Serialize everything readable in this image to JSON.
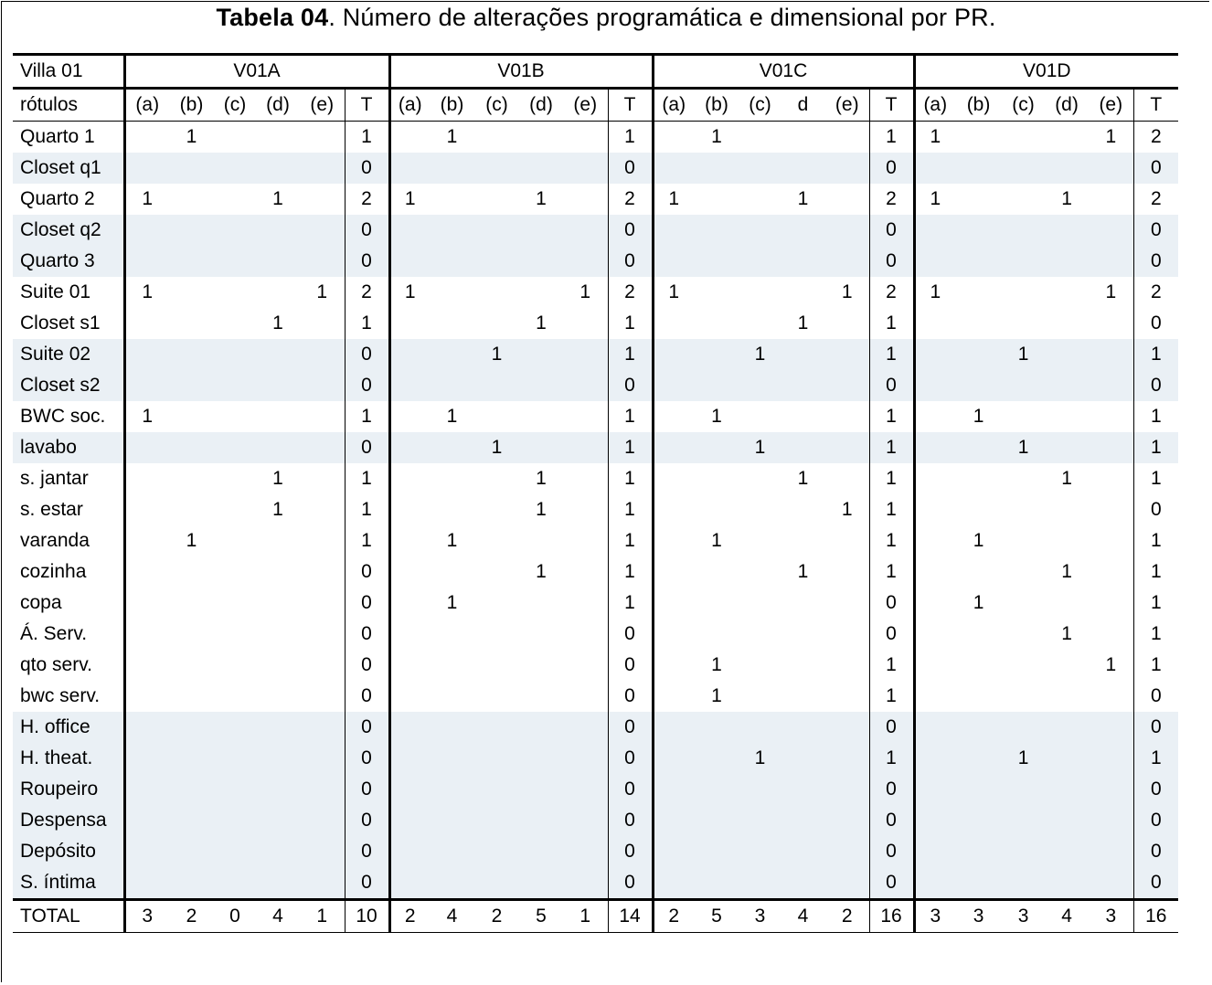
{
  "caption": {
    "bold": "Tabela 04",
    "rest": ". Número de alterações programática e dimensional por PR."
  },
  "header": {
    "corner": "Villa 01",
    "groups": [
      "V01A",
      "V01B",
      "V01C",
      "V01D"
    ],
    "row_label": "rótulos",
    "sub": [
      [
        "(a)",
        "(b)",
        "(c)",
        "(d)",
        "(e)",
        "T"
      ],
      [
        "(a)",
        "(b)",
        "(c)",
        "(d)",
        "(e)",
        "T"
      ],
      [
        "(a)",
        "(b)",
        "(c)",
        "d",
        "(e)",
        "T"
      ],
      [
        "(a)",
        "(b)",
        "(c)",
        "(d)",
        "(e)",
        "T"
      ]
    ]
  },
  "rows": [
    {
      "label": "Quarto 1",
      "band": false,
      "cells": [
        [
          "",
          "1",
          "",
          "",
          "",
          "1"
        ],
        [
          "",
          "1",
          "",
          "",
          "",
          "1"
        ],
        [
          "",
          "1",
          "",
          "",
          "",
          "1"
        ],
        [
          "1",
          "",
          "",
          "",
          "1",
          "2"
        ]
      ]
    },
    {
      "label": "Closet q1",
      "band": true,
      "cells": [
        [
          "",
          "",
          "",
          "",
          "",
          "0"
        ],
        [
          "",
          "",
          "",
          "",
          "",
          "0"
        ],
        [
          "",
          "",
          "",
          "",
          "",
          "0"
        ],
        [
          "",
          "",
          "",
          "",
          "",
          "0"
        ]
      ]
    },
    {
      "label": "Quarto 2",
      "band": false,
      "cells": [
        [
          "1",
          "",
          "",
          "1",
          "",
          "2"
        ],
        [
          "1",
          "",
          "",
          "1",
          "",
          "2"
        ],
        [
          "1",
          "",
          "",
          "1",
          "",
          "2"
        ],
        [
          "1",
          "",
          "",
          "1",
          "",
          "2"
        ]
      ]
    },
    {
      "label": "Closet q2",
      "band": true,
      "cells": [
        [
          "",
          "",
          "",
          "",
          "",
          "0"
        ],
        [
          "",
          "",
          "",
          "",
          "",
          "0"
        ],
        [
          "",
          "",
          "",
          "",
          "",
          "0"
        ],
        [
          "",
          "",
          "",
          "",
          "",
          "0"
        ]
      ]
    },
    {
      "label": "Quarto 3",
      "band": true,
      "cells": [
        [
          "",
          "",
          "",
          "",
          "",
          "0"
        ],
        [
          "",
          "",
          "",
          "",
          "",
          "0"
        ],
        [
          "",
          "",
          "",
          "",
          "",
          "0"
        ],
        [
          "",
          "",
          "",
          "",
          "",
          "0"
        ]
      ]
    },
    {
      "label": "Suite 01",
      "band": false,
      "cells": [
        [
          "1",
          "",
          "",
          "",
          "1",
          "2"
        ],
        [
          "1",
          "",
          "",
          "",
          "1",
          "2"
        ],
        [
          "1",
          "",
          "",
          "",
          "1",
          "2"
        ],
        [
          "1",
          "",
          "",
          "",
          "1",
          "2"
        ]
      ]
    },
    {
      "label": "Closet s1",
      "band": false,
      "cells": [
        [
          "",
          "",
          "",
          "1",
          "",
          "1"
        ],
        [
          "",
          "",
          "",
          "1",
          "",
          "1"
        ],
        [
          "",
          "",
          "",
          "1",
          "",
          "1"
        ],
        [
          "",
          "",
          "",
          "",
          "",
          "0"
        ]
      ]
    },
    {
      "label": "Suite 02",
      "band": true,
      "cells": [
        [
          "",
          "",
          "",
          "",
          "",
          "0"
        ],
        [
          "",
          "",
          "1",
          "",
          "",
          "1"
        ],
        [
          "",
          "",
          "1",
          "",
          "",
          "1"
        ],
        [
          "",
          "",
          "1",
          "",
          "",
          "1"
        ]
      ]
    },
    {
      "label": "Closet s2",
      "band": true,
      "cells": [
        [
          "",
          "",
          "",
          "",
          "",
          "0"
        ],
        [
          "",
          "",
          "",
          "",
          "",
          "0"
        ],
        [
          "",
          "",
          "",
          "",
          "",
          "0"
        ],
        [
          "",
          "",
          "",
          "",
          "",
          "0"
        ]
      ]
    },
    {
      "label": "BWC soc.",
      "band": false,
      "cells": [
        [
          "1",
          "",
          "",
          "",
          "",
          "1"
        ],
        [
          "",
          "1",
          "",
          "",
          "",
          "1"
        ],
        [
          "",
          "1",
          "",
          "",
          "",
          "1"
        ],
        [
          "",
          "1",
          "",
          "",
          "",
          "1"
        ]
      ]
    },
    {
      "label": "lavabo",
      "band": true,
      "cells": [
        [
          "",
          "",
          "",
          "",
          "",
          "0"
        ],
        [
          "",
          "",
          "1",
          "",
          "",
          "1"
        ],
        [
          "",
          "",
          "1",
          "",
          "",
          "1"
        ],
        [
          "",
          "",
          "1",
          "",
          "",
          "1"
        ]
      ]
    },
    {
      "label": "s. jantar",
      "band": false,
      "cells": [
        [
          "",
          "",
          "",
          "1",
          "",
          "1"
        ],
        [
          "",
          "",
          "",
          "1",
          "",
          "1"
        ],
        [
          "",
          "",
          "",
          "1",
          "",
          "1"
        ],
        [
          "",
          "",
          "",
          "1",
          "",
          "1"
        ]
      ]
    },
    {
      "label": "s. estar",
      "band": false,
      "cells": [
        [
          "",
          "",
          "",
          "1",
          "",
          "1"
        ],
        [
          "",
          "",
          "",
          "1",
          "",
          "1"
        ],
        [
          "",
          "",
          "",
          "",
          "1",
          "1"
        ],
        [
          "",
          "",
          "",
          "",
          "",
          "0"
        ]
      ]
    },
    {
      "label": "varanda",
      "band": false,
      "cells": [
        [
          "",
          "1",
          "",
          "",
          "",
          "1"
        ],
        [
          "",
          "1",
          "",
          "",
          "",
          "1"
        ],
        [
          "",
          "1",
          "",
          "",
          "",
          "1"
        ],
        [
          "",
          "1",
          "",
          "",
          "",
          "1"
        ]
      ]
    },
    {
      "label": "cozinha",
      "band": false,
      "cells": [
        [
          "",
          "",
          "",
          "",
          "",
          "0"
        ],
        [
          "",
          "",
          "",
          "1",
          "",
          "1"
        ],
        [
          "",
          "",
          "",
          "1",
          "",
          "1"
        ],
        [
          "",
          "",
          "",
          "1",
          "",
          "1"
        ]
      ]
    },
    {
      "label": "copa",
      "band": false,
      "cells": [
        [
          "",
          "",
          "",
          "",
          "",
          "0"
        ],
        [
          "",
          "1",
          "",
          "",
          "",
          "1"
        ],
        [
          "",
          "",
          "",
          "",
          "",
          "0"
        ],
        [
          "",
          "1",
          "",
          "",
          "",
          "1"
        ]
      ]
    },
    {
      "label": "Á. Serv.",
      "band": false,
      "cells": [
        [
          "",
          "",
          "",
          "",
          "",
          "0"
        ],
        [
          "",
          "",
          "",
          "",
          "",
          "0"
        ],
        [
          "",
          "",
          "",
          "",
          "",
          "0"
        ],
        [
          "",
          "",
          "",
          "1",
          "",
          "1"
        ]
      ]
    },
    {
      "label": "qto serv.",
      "band": false,
      "cells": [
        [
          "",
          "",
          "",
          "",
          "",
          "0"
        ],
        [
          "",
          "",
          "",
          "",
          "",
          "0"
        ],
        [
          "",
          "1",
          "",
          "",
          "",
          "1"
        ],
        [
          "",
          "",
          "",
          "",
          "1",
          "1"
        ]
      ]
    },
    {
      "label": "bwc serv.",
      "band": false,
      "cells": [
        [
          "",
          "",
          "",
          "",
          "",
          "0"
        ],
        [
          "",
          "",
          "",
          "",
          "",
          "0"
        ],
        [
          "",
          "1",
          "",
          "",
          "",
          "1"
        ],
        [
          "",
          "",
          "",
          "",
          "",
          "0"
        ]
      ]
    },
    {
      "label": "H. office",
      "band": true,
      "cells": [
        [
          "",
          "",
          "",
          "",
          "",
          "0"
        ],
        [
          "",
          "",
          "",
          "",
          "",
          "0"
        ],
        [
          "",
          "",
          "",
          "",
          "",
          "0"
        ],
        [
          "",
          "",
          "",
          "",
          "",
          "0"
        ]
      ]
    },
    {
      "label": "H. theat.",
      "band": true,
      "cells": [
        [
          "",
          "",
          "",
          "",
          "",
          "0"
        ],
        [
          "",
          "",
          "",
          "",
          "",
          "0"
        ],
        [
          "",
          "",
          "1",
          "",
          "",
          "1"
        ],
        [
          "",
          "",
          "1",
          "",
          "",
          "1"
        ]
      ]
    },
    {
      "label": "Roupeiro",
      "band": true,
      "cells": [
        [
          "",
          "",
          "",
          "",
          "",
          "0"
        ],
        [
          "",
          "",
          "",
          "",
          "",
          "0"
        ],
        [
          "",
          "",
          "",
          "",
          "",
          "0"
        ],
        [
          "",
          "",
          "",
          "",
          "",
          "0"
        ]
      ]
    },
    {
      "label": "Despensa",
      "band": true,
      "cells": [
        [
          "",
          "",
          "",
          "",
          "",
          "0"
        ],
        [
          "",
          "",
          "",
          "",
          "",
          "0"
        ],
        [
          "",
          "",
          "",
          "",
          "",
          "0"
        ],
        [
          "",
          "",
          "",
          "",
          "",
          "0"
        ]
      ]
    },
    {
      "label": "Depósito",
      "band": true,
      "cells": [
        [
          "",
          "",
          "",
          "",
          "",
          "0"
        ],
        [
          "",
          "",
          "",
          "",
          "",
          "0"
        ],
        [
          "",
          "",
          "",
          "",
          "",
          "0"
        ],
        [
          "",
          "",
          "",
          "",
          "",
          "0"
        ]
      ]
    },
    {
      "label": "S. íntima",
      "band": true,
      "cells": [
        [
          "",
          "",
          "",
          "",
          "",
          "0"
        ],
        [
          "",
          "",
          "",
          "",
          "",
          "0"
        ],
        [
          "",
          "",
          "",
          "",
          "",
          "0"
        ],
        [
          "",
          "",
          "",
          "",
          "",
          "0"
        ]
      ]
    }
  ],
  "total": {
    "label": "TOTAL",
    "cells": [
      [
        "3",
        "2",
        "0",
        "4",
        "1",
        "10"
      ],
      [
        "2",
        "4",
        "2",
        "5",
        "1",
        "14"
      ],
      [
        "2",
        "5",
        "3",
        "4",
        "2",
        "16"
      ],
      [
        "3",
        "3",
        "3",
        "4",
        "3",
        "16"
      ]
    ]
  }
}
